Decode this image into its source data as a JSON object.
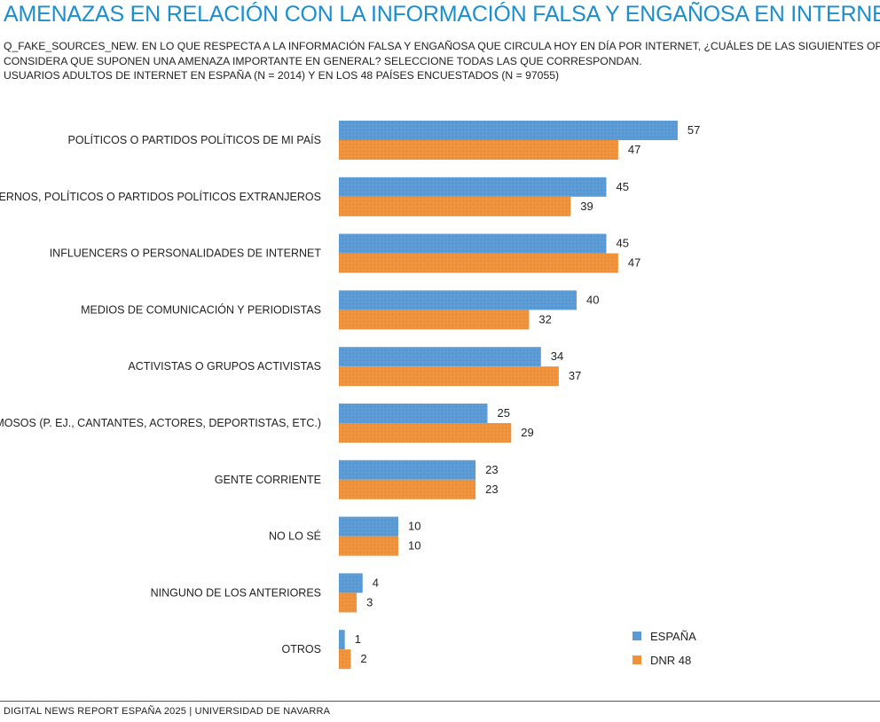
{
  "header": {
    "title": "AMENAZAS EN RELACIÓN CON LA INFORMACIÓN FALSA Y ENGAÑOSA EN INTERNET",
    "subtitle_line1": "Q_FAKE_SOURCES_NEW. EN LO QUE RESPECTA A LA INFORMACIÓN FALSA Y ENGAÑOSA QUE CIRCULA HOY EN DÍA POR INTERNET, ¿CUÁLES DE LAS SIGUIENTES OPCIONES",
    "subtitle_line2": "CONSIDERA QUE SUPONEN UNA AMENAZA IMPORTANTE EN GENERAL? SELECCIONE TODAS LAS QUE CORRESPONDAN.",
    "subtitle_line3": "USUARIOS ADULTOS DE INTERNET EN ESPAÑA (N = 2014) Y EN LOS 48 PAÍSES ENCUESTADOS (N = 97055)"
  },
  "chart_data": {
    "type": "bar",
    "orientation": "horizontal",
    "categories": [
      "POLÍTICOS O PARTIDOS POLÍTICOS DE MI PAÍS",
      "GOBIERNOS, POLÍTICOS O PARTIDOS POLÍTICOS EXTRANJEROS",
      "INFLUENCERS O PERSONALIDADES DE INTERNET",
      "MEDIOS DE COMUNICACIÓN Y PERIODISTAS",
      "ACTIVISTAS O GRUPOS ACTIVISTAS",
      "FAMOSOS (P. EJ., CANTANTES, ACTORES, DEPORTISTAS, ETC.)",
      "GENTE CORRIENTE",
      "NO LO SÉ",
      "NINGUNO DE LOS ANTERIORES",
      "OTROS"
    ],
    "series": [
      {
        "name": "ESPAÑA",
        "color": "#5b9bd5",
        "values": [
          57,
          45,
          45,
          40,
          34,
          25,
          23,
          10,
          4,
          1
        ]
      },
      {
        "name": "DNR 48",
        "color": "#f0923a",
        "values": [
          47,
          39,
          47,
          32,
          37,
          29,
          23,
          10,
          3,
          2
        ]
      }
    ],
    "xlim": [
      0,
      60
    ],
    "grid": false,
    "axes_visible": false,
    "legend_position": "bottom-right",
    "data_labels": true
  },
  "footer": {
    "source": "DIGITAL NEWS REPORT ESPAÑA 2025 | UNIVERSIDAD DE NAVARRA"
  }
}
